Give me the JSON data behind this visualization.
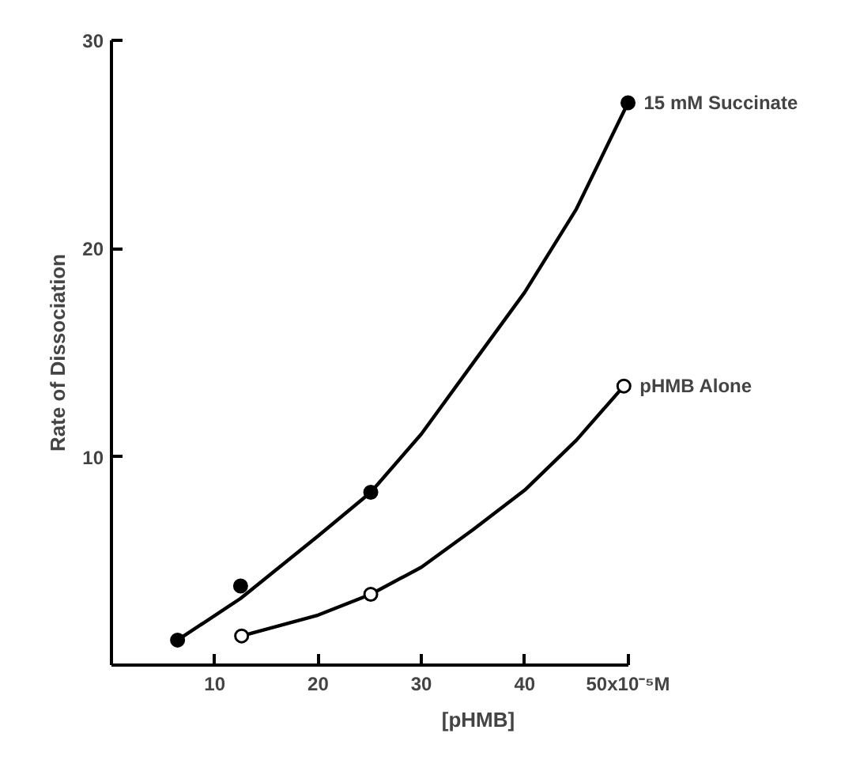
{
  "chart_data": {
    "type": "scatter",
    "xlabel": "[pHMB]",
    "ylabel": "Rate of Dissociation",
    "xlim": [
      0,
      50
    ],
    "ylim": [
      0,
      30
    ],
    "xticks": [
      10,
      20,
      30,
      40,
      {
        "value": 50,
        "label": "50x10⁻⁵M"
      }
    ],
    "yticks": [
      10,
      20,
      30
    ],
    "grid": false,
    "marker": "circle",
    "series": [
      {
        "name": "15 mM Succinate",
        "color": "#000000",
        "x": [
          6.4,
          12.5,
          25.1,
          50.0
        ],
        "values": [
          1.2,
          3.8,
          8.3,
          27.0
        ]
      },
      {
        "name": "pHMB Alone",
        "color": "#ffffff",
        "x": [
          12.6,
          25.1,
          49.6
        ],
        "values": [
          1.4,
          3.4,
          13.4
        ]
      },
      {
        "type": "line",
        "marker": "none",
        "color": "#000000",
        "line_style": "solid",
        "x": [
          6.4,
          12.5,
          20,
          25.1,
          30,
          35,
          40,
          45,
          50.0
        ],
        "values": [
          1.2,
          3.2,
          6.2,
          8.3,
          11.1,
          14.5,
          17.9,
          21.9,
          27.0
        ]
      },
      {
        "type": "line",
        "marker": "none",
        "color": "#000000",
        "line_style": "solid",
        "x": [
          12.6,
          20,
          25.1,
          30,
          35,
          40,
          45,
          49.6
        ],
        "values": [
          1.4,
          2.4,
          3.4,
          4.7,
          6.5,
          8.4,
          10.8,
          13.4
        ]
      }
    ]
  }
}
